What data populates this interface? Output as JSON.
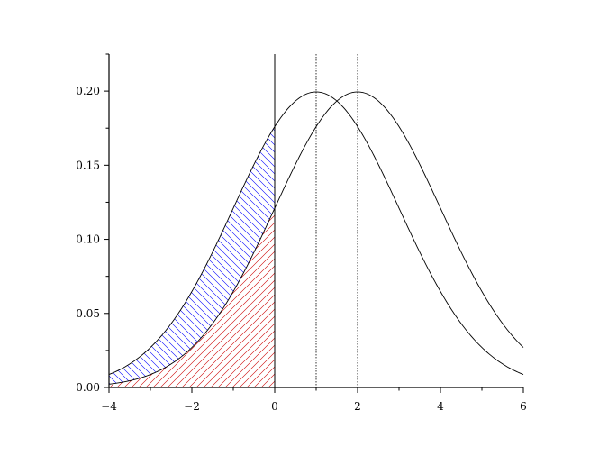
{
  "chart_data": {
    "type": "line",
    "title": "",
    "xlabel": "",
    "ylabel": "",
    "xlim": [
      -4,
      6
    ],
    "ylim": [
      0,
      0.225
    ],
    "x_ticks": [
      -4,
      -2,
      0,
      2,
      4,
      6
    ],
    "x_tick_labels": [
      "−4",
      "−2",
      "0",
      "2",
      "4",
      "6"
    ],
    "y_ticks": [
      0.0,
      0.05,
      0.1,
      0.15,
      0.2
    ],
    "y_tick_labels": [
      "0.00",
      "0.05",
      "0.10",
      "0.15",
      "0.20"
    ],
    "grid": false,
    "series": [
      {
        "kind": "normal_pdf",
        "mean": 1,
        "sd": 2,
        "color": "#000000"
      },
      {
        "kind": "normal_pdf",
        "mean": 2,
        "sd": 2,
        "color": "#000000"
      }
    ],
    "vertical_lines": [
      {
        "x": 0,
        "style": "solid",
        "color": "#000000"
      },
      {
        "x": 1,
        "style": "dotted",
        "color": "#000000"
      },
      {
        "x": 2,
        "style": "dotted",
        "color": "#000000"
      }
    ],
    "shaded_regions": [
      {
        "between": "curve_mean1_and_curve_mean2",
        "x_range": [
          -4,
          0
        ],
        "hatch": "\\\\",
        "color": "#0000ff"
      },
      {
        "between": "x_axis_and_curve_mean2",
        "x_range": [
          -4,
          0
        ],
        "hatch": "//",
        "color": "#cc0000"
      }
    ]
  }
}
